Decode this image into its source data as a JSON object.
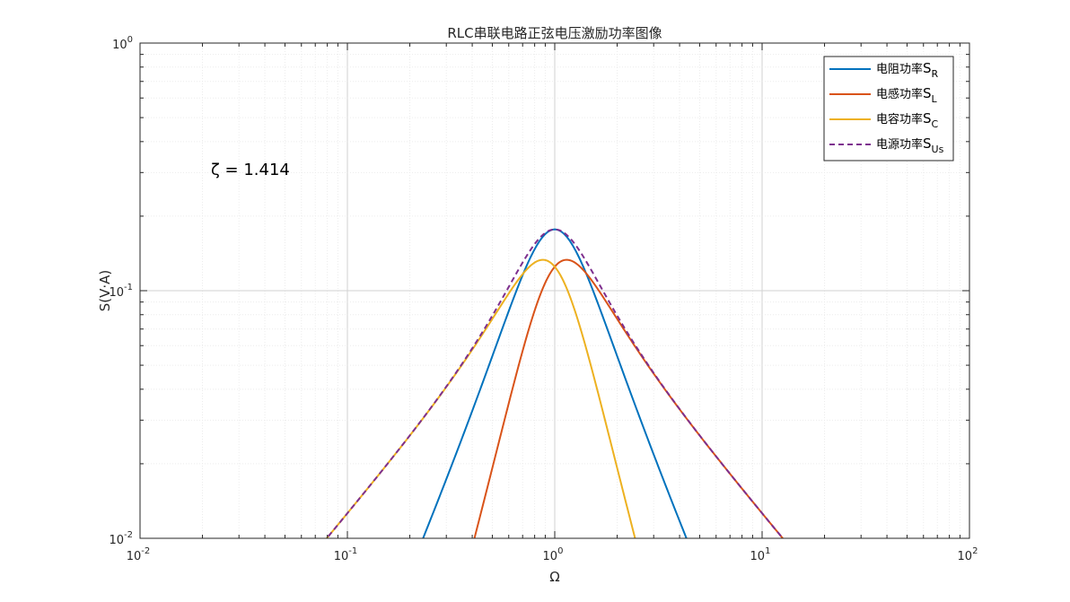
{
  "chart_data": {
    "type": "line",
    "title": "RLC串联电路正弦电压激励功率图像",
    "xlabel": "Ω",
    "ylabel": "S(V·A)",
    "xscale": "log",
    "yscale": "log",
    "xlim": [
      0.01,
      100
    ],
    "ylim": [
      0.01,
      1
    ],
    "x_ticks": [
      {
        "base": "10",
        "exp": "-2"
      },
      {
        "base": "10",
        "exp": "-1"
      },
      {
        "base": "10",
        "exp": "0"
      },
      {
        "base": "10",
        "exp": "1"
      },
      {
        "base": "10",
        "exp": "2"
      }
    ],
    "y_ticks": [
      {
        "base": "10",
        "exp": "-2"
      },
      {
        "base": "10",
        "exp": "-1"
      },
      {
        "base": "10",
        "exp": "0"
      }
    ],
    "grid": true,
    "minor_grid": true,
    "legend_position": "top-right",
    "annotation": "ζ = 1.414",
    "zeta": 1.414,
    "x_range": [
      0.01,
      100
    ],
    "series": [
      {
        "key": "SR",
        "legend_prefix": "电阻功率",
        "legend_symbol": "S",
        "legend_sub": "R",
        "color": "#0072BD",
        "style": "solid"
      },
      {
        "key": "SL",
        "legend_prefix": "电感功率",
        "legend_symbol": "S",
        "legend_sub": "L",
        "color": "#D95319",
        "style": "solid"
      },
      {
        "key": "SC",
        "legend_prefix": "电容功率",
        "legend_symbol": "S",
        "legend_sub": "C",
        "color": "#EDB120",
        "style": "solid"
      },
      {
        "key": "SUs",
        "legend_prefix": "电源功率",
        "legend_symbol": "S",
        "legend_sub": "Us",
        "color": "#7E2F8E",
        "style": "dashed"
      }
    ]
  }
}
